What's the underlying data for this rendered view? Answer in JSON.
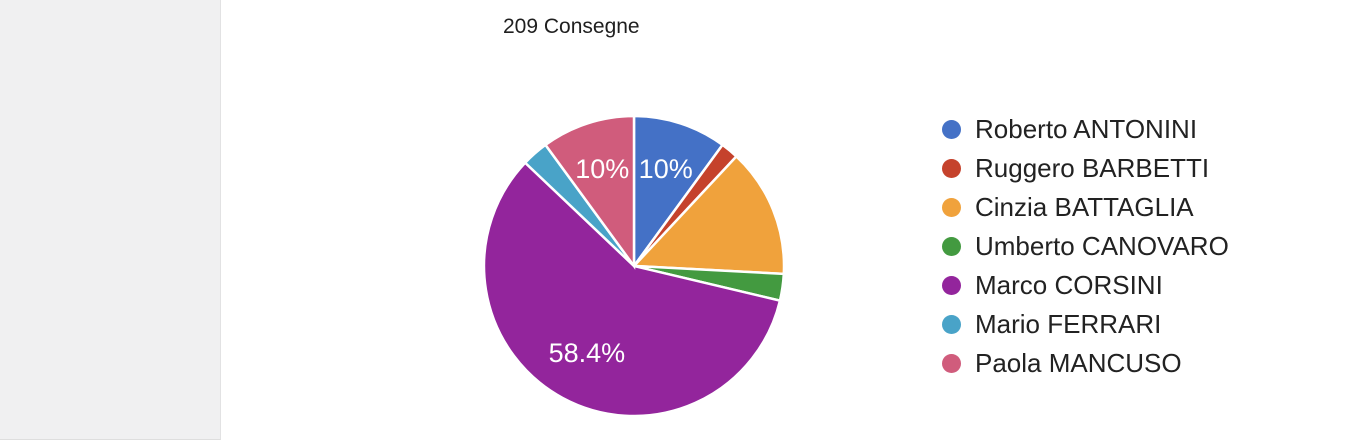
{
  "page": {
    "background_color": "#ffffff"
  },
  "sidebar": {
    "background_color": "#f0f0f1",
    "border_color": "#e2e2e3"
  },
  "chart_data": {
    "type": "pie",
    "title": "209 Consegne",
    "total": 209,
    "legend_position": "right",
    "slice_border_color": "#ffffff",
    "slice_label_color": "#ffffff",
    "shown_slice_labels": [
      "10%",
      "58.4%",
      "10%"
    ],
    "slices": [
      {
        "name": "Roberto ANTONINI",
        "value": 21,
        "percent": 10.0,
        "shown_label": "10%",
        "color": "#4471c6"
      },
      {
        "name": "Ruggero BARBETTI",
        "value": 4,
        "percent": 1.9,
        "shown_label": null,
        "color": "#c5422c"
      },
      {
        "name": "Cinzia BATTAGLIA",
        "value": 29,
        "percent": 13.9,
        "shown_label": null,
        "color": "#f0a23c"
      },
      {
        "name": "Umberto CANOVARO",
        "value": 6,
        "percent": 2.9,
        "shown_label": null,
        "color": "#439a40"
      },
      {
        "name": "Marco CORSINI",
        "value": 122,
        "percent": 58.4,
        "shown_label": "58.4%",
        "color": "#93259c"
      },
      {
        "name": "Mario FERRARI",
        "value": 6,
        "percent": 2.9,
        "shown_label": null,
        "color": "#49a3c8"
      },
      {
        "name": "Paola MANCUSO",
        "value": 21,
        "percent": 10.0,
        "shown_label": "10%",
        "color": "#d05c7c"
      }
    ]
  }
}
